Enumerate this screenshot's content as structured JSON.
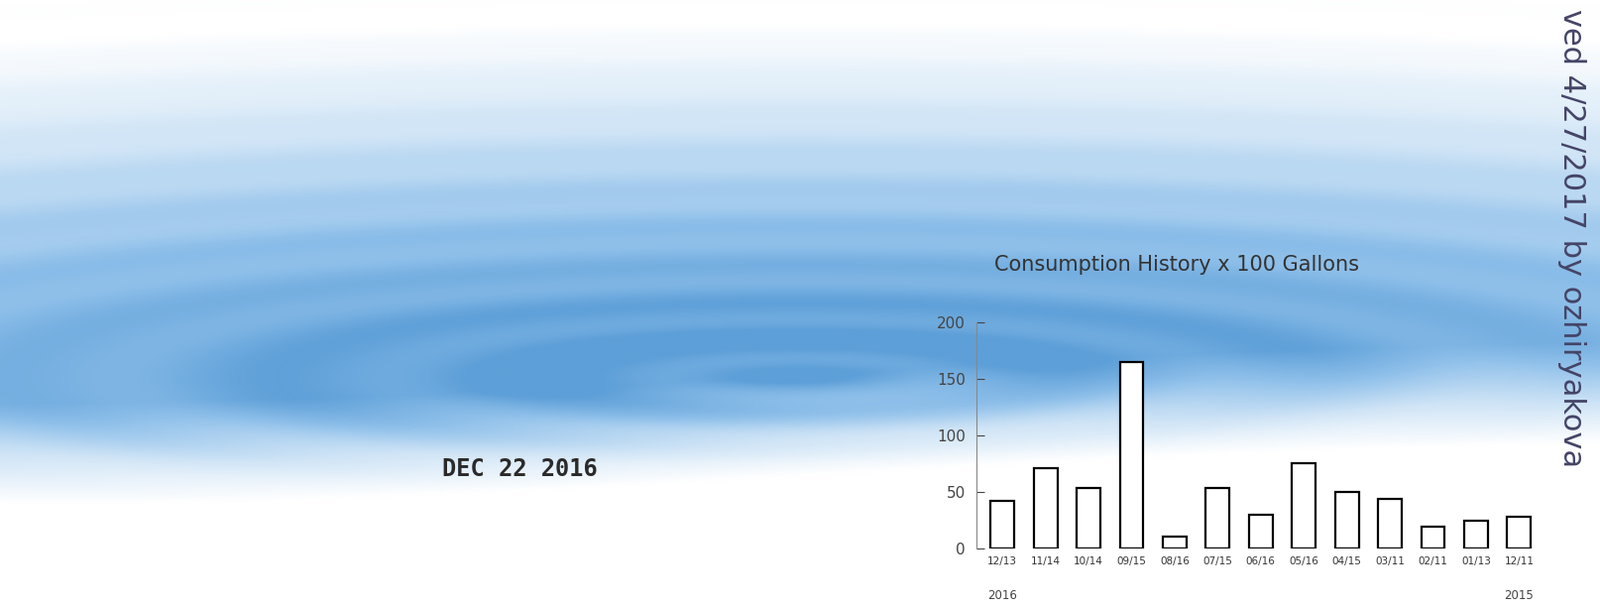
{
  "chart_data": {
    "type": "bar",
    "title": "Consumption History x 100 Gallons",
    "categories": [
      "12/13",
      "11/14",
      "10/14",
      "09/15",
      "08/16",
      "07/15",
      "06/16",
      "05/16",
      "04/15",
      "03/11",
      "02/11",
      "01/13",
      "12/11"
    ],
    "values": [
      42,
      71,
      53,
      165,
      10,
      53,
      30,
      75,
      50,
      44,
      19,
      24,
      28
    ],
    "color": "#ffffff",
    "ylim": [
      0,
      200
    ],
    "yticks": [
      0,
      50,
      100,
      150,
      200
    ],
    "grid": false,
    "annotations": [
      {
        "text": "2016",
        "category_index": 0
      },
      {
        "text": "2015",
        "category_index": 12
      }
    ],
    "stamp": "DEC 22 2016",
    "side_note": "ved 4/27/2017 by ozhiryakova"
  }
}
